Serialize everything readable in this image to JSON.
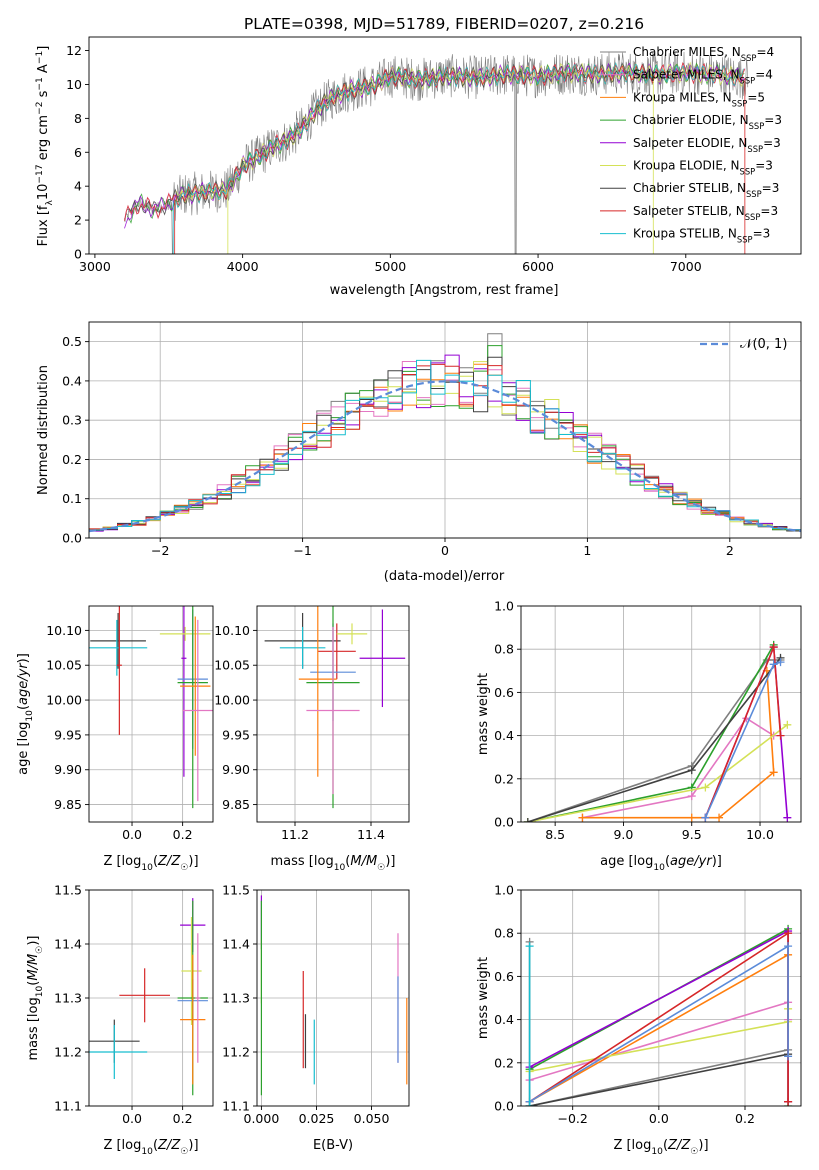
{
  "figure_title": "PLATE=0398, MJD=51789, FIBERID=0207, z=0.216",
  "chart_data": [
    {
      "id": "spectrum",
      "type": "line",
      "title": "PLATE=0398, MJD=51789, FIBERID=0207, z=0.216",
      "xlabel": "wavelength [Angstrom, rest frame]",
      "ylabel": "Flux [f_λ 10^-17 erg cm^-2 s^-1 A^-1]",
      "xlim": [
        2960,
        7780
      ],
      "ylim": [
        0,
        12.8
      ],
      "xticks": [
        3000,
        4000,
        5000,
        6000,
        7000
      ],
      "yticks": [
        0,
        2,
        4,
        6,
        8,
        10,
        12
      ],
      "grid": false,
      "legend_position": "top-right",
      "data_envelope": {
        "x": [
          3200,
          3300,
          3400,
          3500,
          3600,
          3700,
          3800,
          3900,
          4000,
          4100,
          4200,
          4300,
          4400,
          4500,
          4600,
          4700,
          4800,
          4900,
          5000,
          5200,
          5400,
          5600,
          5800,
          6000,
          6200,
          6400,
          6600,
          6800,
          7000,
          7200,
          7400
        ],
        "y": [
          2.0,
          3.0,
          2.6,
          3.0,
          3.5,
          3.6,
          3.7,
          3.8,
          5.2,
          5.7,
          6.3,
          6.7,
          7.4,
          8.5,
          9.2,
          9.6,
          9.8,
          10.0,
          10.5,
          10.3,
          10.5,
          10.4,
          10.6,
          10.5,
          10.7,
          10.6,
          10.7,
          10.6,
          10.7,
          10.6,
          10.4
        ]
      },
      "series": [
        {
          "name": "Chabrier MILES",
          "nssp": "4",
          "color": "#7f7f7f"
        },
        {
          "name": "Salpeter MILES",
          "nssp": "4",
          "color": "#e377c2"
        },
        {
          "name": "Kroupa MILES",
          "nssp": "5",
          "color": "#ff7f0e"
        },
        {
          "name": "Chabrier ELODIE",
          "nssp": "3",
          "color": "#2ca02c"
        },
        {
          "name": "Salpeter ELODIE",
          "nssp": "3",
          "color": "#9400d3"
        },
        {
          "name": "Kroupa ELODIE",
          "nssp": "3",
          "color": "#d4e157"
        },
        {
          "name": "Chabrier STELIB",
          "nssp": "3",
          "color": "#404040"
        },
        {
          "name": "Salpeter STELIB",
          "nssp": "3",
          "color": "#d62728"
        },
        {
          "name": "Kroupa STELIB",
          "nssp": "3",
          "color": "#17becf"
        }
      ]
    },
    {
      "id": "residuals",
      "type": "histogram",
      "xlabel": "(data-model)/error",
      "ylabel": "Normed distribution",
      "xlim": [
        -2.5,
        2.5
      ],
      "ylim": [
        0,
        0.55
      ],
      "xticks": [
        -2,
        -1,
        0,
        1,
        2
      ],
      "yticks": [
        0.0,
        0.1,
        0.2,
        0.3,
        0.4,
        0.5
      ],
      "grid": true,
      "legend": "𝒩(0, 1)",
      "legend_position": "top-right",
      "reference_curve": "normal(0,1)",
      "bin_width": 0.1,
      "series_colors": [
        "#7f7f7f",
        "#e377c2",
        "#ff7f0e",
        "#2ca02c",
        "#9400d3",
        "#d4e157",
        "#404040",
        "#d62728",
        "#17becf"
      ],
      "reference_color": "#5b8bd9"
    },
    {
      "id": "age_vs_Z",
      "type": "errorbar",
      "xlabel": "Z [log10(Z/Z☉)]",
      "ylabel": "age [log10(age/yr)]",
      "xlim": [
        -0.17,
        0.32
      ],
      "ylim": [
        9.825,
        10.135
      ],
      "xticks": [
        0.0,
        0.2
      ],
      "yticks": [
        9.85,
        9.9,
        9.95,
        10.0,
        10.05,
        10.1
      ],
      "grid": true,
      "points": [
        {
          "x": -0.055,
          "xerr": 0.11,
          "y": 10.085,
          "yerr": 0.04,
          "color": "#404040"
        },
        {
          "x": -0.06,
          "xerr": 0.12,
          "y": 10.075,
          "yerr": 0.04,
          "color": "#17becf"
        },
        {
          "x": -0.05,
          "xerr": 0.01,
          "y": 10.05,
          "yerr": 0.1,
          "color": "#d62728"
        },
        {
          "x": 0.205,
          "xerr": 0.01,
          "y": 10.06,
          "yerr": 0.17,
          "color": "#9400d3"
        },
        {
          "x": 0.21,
          "xerr": 0.1,
          "y": 10.095,
          "yerr": 0.01,
          "color": "#d4e157"
        },
        {
          "x": 0.24,
          "xerr": 0.06,
          "y": 10.03,
          "yerr": 0.1,
          "color": "#5b8bd9"
        },
        {
          "x": 0.24,
          "xerr": 0.06,
          "y": 10.025,
          "yerr": 0.18,
          "color": "#2ca02c"
        },
        {
          "x": 0.25,
          "xerr": 0.06,
          "y": 10.02,
          "yerr": 0.1,
          "color": "#ff7f0e"
        },
        {
          "x": 0.26,
          "xerr": 0.06,
          "y": 9.985,
          "yerr": 0.13,
          "color": "#e377c2"
        }
      ]
    },
    {
      "id": "age_vs_mass",
      "type": "errorbar",
      "xlabel": "mass [log10(M/M☉)]",
      "ylabel": "",
      "xlim": [
        11.1,
        11.5
      ],
      "ylim": [
        9.825,
        10.135
      ],
      "xticks": [
        11.2,
        11.4
      ],
      "yticks": [
        9.85,
        9.9,
        9.95,
        10.0,
        10.05,
        10.1
      ],
      "grid": true,
      "points": [
        {
          "x": 11.22,
          "xerr": 0.1,
          "y": 10.085,
          "yerr": 0.04,
          "color": "#404040"
        },
        {
          "x": 11.22,
          "xerr": 0.06,
          "y": 10.075,
          "yerr": 0.03,
          "color": "#17becf"
        },
        {
          "x": 11.31,
          "xerr": 0.05,
          "y": 10.07,
          "yerr": 0.04,
          "color": "#d62728"
        },
        {
          "x": 11.43,
          "xerr": 0.06,
          "y": 10.06,
          "yerr": 0.07,
          "color": "#9400d3"
        },
        {
          "x": 11.35,
          "xerr": 0.04,
          "y": 10.095,
          "yerr": 0.015,
          "color": "#d4e157"
        },
        {
          "x": 11.3,
          "xerr": 0.06,
          "y": 10.04,
          "yerr": 0.07,
          "color": "#5b8bd9"
        },
        {
          "x": 11.3,
          "xerr": 0.07,
          "y": 10.025,
          "yerr": 0.18,
          "color": "#2ca02c"
        },
        {
          "x": 11.26,
          "xerr": 0.05,
          "y": 10.03,
          "yerr": 0.14,
          "color": "#ff7f0e"
        },
        {
          "x": 11.3,
          "xerr": 0.07,
          "y": 9.985,
          "yerr": 0.12,
          "color": "#e377c2"
        }
      ]
    },
    {
      "id": "massweight_vs_age",
      "type": "line",
      "xlabel": "age [log10(age/yr)]",
      "ylabel": "mass weight",
      "xlim": [
        8.25,
        10.3
      ],
      "ylim": [
        0,
        1.0
      ],
      "xticks": [
        8.5,
        9.0,
        9.5,
        10.0
      ],
      "yticks": [
        0.0,
        0.2,
        0.4,
        0.6,
        0.8,
        1.0
      ],
      "grid": true,
      "series": [
        {
          "color": "#7f7f7f",
          "x": [
            8.3,
            9.5,
            10.05,
            10.15
          ],
          "y": [
            0.0,
            0.26,
            0.75,
            0.75
          ]
        },
        {
          "color": "#e377c2",
          "x": [
            8.7,
            9.5,
            9.9,
            10.1
          ],
          "y": [
            0.02,
            0.12,
            0.48,
            0.4
          ]
        },
        {
          "color": "#ff7f0e",
          "x": [
            8.7,
            9.5,
            9.7,
            10.1,
            10.05
          ],
          "y": [
            0.02,
            0.02,
            0.02,
            0.23,
            0.7
          ]
        },
        {
          "color": "#2ca02c",
          "x": [
            8.3,
            9.5,
            10.1
          ],
          "y": [
            0.0,
            0.16,
            0.82
          ]
        },
        {
          "color": "#9400d3",
          "x": [
            9.6,
            10.1,
            10.2
          ],
          "y": [
            0.02,
            0.81,
            0.02
          ]
        },
        {
          "color": "#d4e157",
          "x": [
            8.3,
            9.6,
            10.2
          ],
          "y": [
            0.0,
            0.16,
            0.45
          ]
        },
        {
          "color": "#404040",
          "x": [
            8.3,
            9.5,
            10.15
          ],
          "y": [
            0.0,
            0.24,
            0.76
          ]
        },
        {
          "color": "#d62728",
          "x": [
            9.6,
            10.1,
            10.15
          ],
          "y": [
            0.02,
            0.81,
            0.4
          ]
        },
        {
          "color": "#5b8bd9",
          "x": [
            9.6,
            10.1,
            10.15
          ],
          "y": [
            0.02,
            0.73,
            0.74
          ]
        }
      ]
    },
    {
      "id": "mass_vs_Z",
      "type": "errorbar",
      "xlabel": "Z [log10(Z/Z☉)]",
      "ylabel": "mass [log10(M/M☉)]",
      "xlim": [
        -0.17,
        0.32
      ],
      "ylim": [
        11.1,
        11.5
      ],
      "xticks": [
        0.0,
        0.2
      ],
      "yticks": [
        11.1,
        11.2,
        11.3,
        11.4,
        11.5
      ],
      "grid": true,
      "points": [
        {
          "x": -0.07,
          "xerr": 0.1,
          "y": 11.22,
          "yerr": 0.04,
          "color": "#404040"
        },
        {
          "x": -0.07,
          "xerr": 0.13,
          "y": 11.2,
          "yerr": 0.05,
          "color": "#17becf"
        },
        {
          "x": 0.05,
          "xerr": 0.1,
          "y": 11.305,
          "yerr": 0.05,
          "color": "#d62728"
        },
        {
          "x": 0.24,
          "xerr": 0.05,
          "y": 11.435,
          "yerr": 0.05,
          "color": "#9400d3"
        },
        {
          "x": 0.235,
          "xerr": 0.04,
          "y": 11.35,
          "yerr": 0.1,
          "color": "#d4e157"
        },
        {
          "x": 0.24,
          "xerr": 0.06,
          "y": 11.295,
          "yerr": 0.04,
          "color": "#5b8bd9"
        },
        {
          "x": 0.24,
          "xerr": 0.06,
          "y": 11.3,
          "yerr": 0.18,
          "color": "#2ca02c"
        },
        {
          "x": 0.24,
          "xerr": 0.05,
          "y": 11.26,
          "yerr": 0.12,
          "color": "#ff7f0e"
        },
        {
          "x": 0.26,
          "xerr": 0.01,
          "y": 11.3,
          "yerr": 0.12,
          "color": "#e377c2"
        }
      ]
    },
    {
      "id": "mass_vs_ebv",
      "type": "errorbar",
      "xlabel": "E(B-V)",
      "ylabel": "",
      "xlim": [
        -0.002,
        0.067
      ],
      "ylim": [
        11.1,
        11.5
      ],
      "xticks": [
        0.0,
        0.025,
        0.05
      ],
      "yticks": [
        11.1,
        11.2,
        11.3,
        11.4,
        11.5
      ],
      "grid": true,
      "points": [
        {
          "x": 0.0,
          "y": 11.44,
          "yerr": 0.05,
          "color": "#9400d3"
        },
        {
          "x": 0.0,
          "y": 11.35,
          "yerr": 0.06,
          "color": "#d4e157"
        },
        {
          "x": 0.0,
          "y": 11.3,
          "yerr": 0.18,
          "color": "#2ca02c"
        },
        {
          "x": 0.019,
          "y": 11.26,
          "yerr": 0.09,
          "color": "#d62728"
        },
        {
          "x": 0.02,
          "y": 11.22,
          "yerr": 0.05,
          "color": "#404040"
        },
        {
          "x": 0.024,
          "y": 11.2,
          "yerr": 0.06,
          "color": "#17becf"
        },
        {
          "x": 0.062,
          "y": 11.3,
          "yerr": 0.12,
          "color": "#e377c2"
        },
        {
          "x": 0.062,
          "y": 11.26,
          "yerr": 0.08,
          "color": "#5b8bd9"
        },
        {
          "x": 0.066,
          "y": 11.22,
          "yerr": 0.08,
          "color": "#ff7f0e"
        }
      ]
    },
    {
      "id": "massweight_vs_Z",
      "type": "line",
      "xlabel": "Z [log10(Z/Z☉)]",
      "ylabel": "mass weight",
      "xlim": [
        -0.32,
        0.33
      ],
      "ylim": [
        0,
        1.0
      ],
      "xticks": [
        -0.2,
        0.0,
        0.2
      ],
      "yticks": [
        0.0,
        0.2,
        0.4,
        0.6,
        0.8,
        1.0
      ],
      "grid": true,
      "series": [
        {
          "color": "#7f7f7f",
          "x": [
            -0.3,
            -0.3,
            0.3,
            0.3
          ],
          "y": [
            0.76,
            0.0,
            0.26,
            0.24
          ]
        },
        {
          "color": "#e377c2",
          "x": [
            -0.3,
            0.3,
            0.3
          ],
          "y": [
            0.12,
            0.48,
            0.4
          ]
        },
        {
          "color": "#ff7f0e",
          "x": [
            -0.3,
            0.3,
            0.3
          ],
          "y": [
            0.02,
            0.7,
            0.02
          ]
        },
        {
          "color": "#2ca02c",
          "x": [
            -0.3,
            0.3,
            0.3
          ],
          "y": [
            0.17,
            0.82,
            0.0
          ]
        },
        {
          "color": "#9400d3",
          "x": [
            -0.3,
            0.3,
            0.3
          ],
          "y": [
            0.18,
            0.81,
            0.02
          ]
        },
        {
          "color": "#d4e157",
          "x": [
            -0.3,
            0.3,
            0.3
          ],
          "y": [
            0.16,
            0.39,
            0.45
          ]
        },
        {
          "color": "#404040",
          "x": [
            -0.3,
            0.3
          ],
          "y": [
            0.0,
            0.24
          ]
        },
        {
          "color": "#d62728",
          "x": [
            -0.3,
            0.3,
            0.3
          ],
          "y": [
            0.02,
            0.8,
            0.02
          ]
        },
        {
          "color": "#5b8bd9",
          "x": [
            -0.3,
            0.3,
            0.3
          ],
          "y": [
            0.02,
            0.74,
            0.23
          ]
        },
        {
          "color": "#17becf",
          "x": [
            -0.3,
            -0.3
          ],
          "y": [
            0.0,
            0.74
          ]
        }
      ]
    }
  ]
}
